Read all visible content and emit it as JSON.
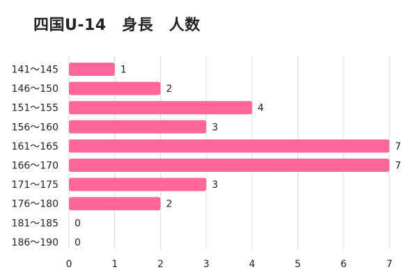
{
  "title": "四国U-14　身長　人数",
  "colors": {
    "bar": "#ff6699",
    "grid": "#d9d9d9"
  },
  "chart_data": {
    "type": "bar",
    "orientation": "horizontal",
    "title": "四国U-14　身長　人数",
    "categories": [
      "141～145",
      "146～150",
      "151～155",
      "156～160",
      "161～165",
      "166～170",
      "171～175",
      "176～180",
      "181～185",
      "186～190"
    ],
    "values": [
      1,
      2,
      4,
      3,
      7,
      7,
      3,
      2,
      0,
      0
    ],
    "xlim": [
      0,
      7
    ],
    "xticks": [
      "0",
      "1",
      "2",
      "3",
      "4",
      "5",
      "6",
      "7"
    ],
    "grid": "vertical",
    "data_labels": true
  }
}
